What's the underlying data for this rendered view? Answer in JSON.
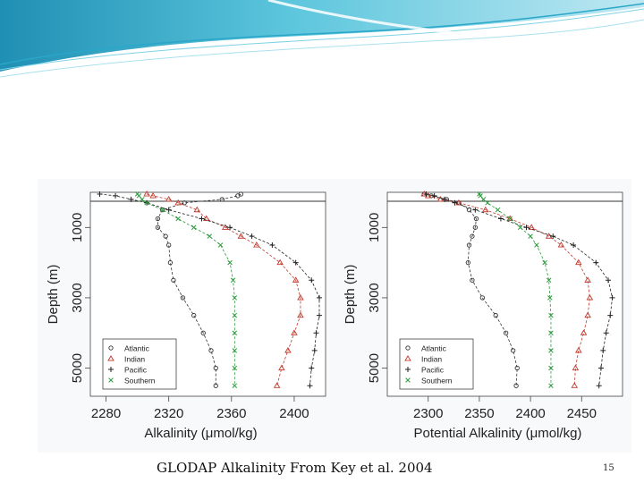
{
  "slide": {
    "caption": "GLODAP Alkalinity From Key et al. 2004",
    "page_number": "15",
    "header_colors": {
      "teal_light": "#bfe8f2",
      "teal_mid": "#5cc6dd",
      "teal_dark": "#1f8fb3"
    }
  },
  "chart_data": [
    {
      "type": "scatter",
      "title": "",
      "xlabel": "Alkalinity (μmol/kg)",
      "ylabel": "Depth (m)",
      "xlim": [
        2270,
        2420
      ],
      "ylim": [
        5800,
        0
      ],
      "xticks": [
        2280,
        2320,
        2360,
        2400
      ],
      "yticks": [
        1000,
        3000,
        5000
      ],
      "legend_position": "bottom-left",
      "series": [
        {
          "name": "Atlantic",
          "marker": "circle",
          "color": "#333333",
          "depth": [
            50,
            100,
            200,
            300,
            500,
            750,
            1000,
            1250,
            1500,
            2000,
            2500,
            3000,
            3500,
            4000,
            4500,
            5000,
            5500
          ],
          "values": [
            2366,
            2364,
            2354,
            2330,
            2316,
            2313,
            2313,
            2318,
            2320,
            2321,
            2323,
            2329,
            2336,
            2342,
            2347,
            2350,
            2350
          ]
        },
        {
          "name": "Indian",
          "marker": "triangle",
          "color": "#c0392b",
          "depth": [
            50,
            100,
            200,
            300,
            500,
            750,
            1000,
            1250,
            1500,
            2000,
            2500,
            3000,
            3500,
            4000,
            4500,
            5000,
            5500
          ],
          "values": [
            2306,
            2310,
            2320,
            2326,
            2338,
            2344,
            2356,
            2366,
            2376,
            2391,
            2401,
            2404,
            2404,
            2400,
            2396,
            2392,
            2389
          ]
        },
        {
          "name": "Pacific",
          "marker": "plus",
          "color": "#222222",
          "depth": [
            50,
            100,
            200,
            300,
            500,
            750,
            1000,
            1250,
            1500,
            2000,
            2500,
            3000,
            3500,
            4000,
            4500,
            5000,
            5500
          ],
          "values": [
            2276,
            2286,
            2296,
            2306,
            2320,
            2341,
            2359,
            2373,
            2386,
            2401,
            2411,
            2416,
            2416,
            2414,
            2413,
            2411,
            2410
          ]
        },
        {
          "name": "Southern",
          "marker": "x",
          "color": "#2e9a3e",
          "depth": [
            50,
            100,
            200,
            300,
            500,
            750,
            1000,
            1250,
            1500,
            2000,
            2500,
            3000,
            3500,
            4000,
            4500,
            5000,
            5500
          ],
          "values": [
            2300,
            2301,
            2303,
            2306,
            2316,
            2326,
            2336,
            2346,
            2353,
            2359,
            2361,
            2362,
            2362,
            2362,
            2362,
            2362,
            2362
          ]
        }
      ]
    },
    {
      "type": "scatter",
      "title": "",
      "xlabel": "Potential Alkalinity (μmol/kg)",
      "ylabel": "Depth (m)",
      "xlim": [
        2260,
        2490
      ],
      "ylim": [
        5800,
        0
      ],
      "xticks": [
        2300,
        2350,
        2400,
        2450
      ],
      "yticks": [
        1000,
        3000,
        5000
      ],
      "legend_position": "bottom-left",
      "series": [
        {
          "name": "Atlantic",
          "marker": "circle",
          "color": "#333333",
          "depth": [
            50,
            100,
            200,
            300,
            500,
            750,
            1000,
            1250,
            1500,
            2000,
            2500,
            3000,
            3500,
            4000,
            4500,
            5000,
            5500
          ],
          "values": [
            2296,
            2303,
            2318,
            2330,
            2340,
            2347,
            2346,
            2343,
            2340,
            2339,
            2343,
            2353,
            2366,
            2376,
            2383,
            2387,
            2386
          ]
        },
        {
          "name": "Indian",
          "marker": "triangle",
          "color": "#c0392b",
          "depth": [
            50,
            100,
            200,
            300,
            500,
            750,
            1000,
            1250,
            1500,
            2000,
            2500,
            3000,
            3500,
            4000,
            4500,
            5000,
            5500
          ],
          "values": [
            2296,
            2300,
            2312,
            2330,
            2356,
            2380,
            2401,
            2418,
            2430,
            2447,
            2456,
            2458,
            2456,
            2452,
            2447,
            2444,
            2443
          ]
        },
        {
          "name": "Pacific",
          "marker": "plus",
          "color": "#222222",
          "depth": [
            50,
            100,
            200,
            300,
            500,
            750,
            1000,
            1250,
            1500,
            2000,
            2500,
            3000,
            3500,
            4000,
            4500,
            5000,
            5500
          ],
          "values": [
            2298,
            2306,
            2316,
            2326,
            2346,
            2371,
            2396,
            2422,
            2442,
            2464,
            2476,
            2480,
            2478,
            2474,
            2471,
            2469,
            2467
          ]
        },
        {
          "name": "Southern",
          "marker": "x",
          "color": "#2e9a3e",
          "depth": [
            50,
            100,
            200,
            300,
            500,
            750,
            1000,
            1250,
            1500,
            2000,
            2500,
            3000,
            3500,
            4000,
            4500,
            5000,
            5500
          ],
          "values": [
            2350,
            2351,
            2354,
            2358,
            2368,
            2380,
            2390,
            2400,
            2406,
            2414,
            2418,
            2419,
            2420,
            2420,
            2420,
            2420,
            2420
          ]
        }
      ]
    }
  ]
}
